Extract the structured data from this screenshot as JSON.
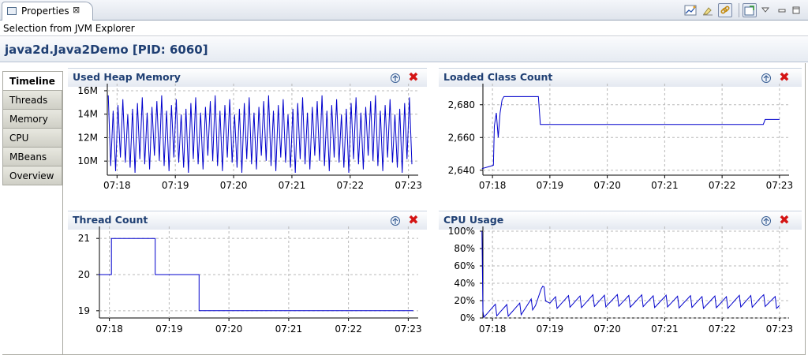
{
  "view": {
    "tab_label": "Properties",
    "tab_close": "⊠"
  },
  "toolbar": [
    "chart-icon",
    "clear-icon",
    "link-icon",
    "pin-icon",
    "view-menu-icon",
    "minimize-icon",
    "maximize-icon"
  ],
  "selection_text": "Selection from JVM Explorer",
  "page_title": "java2d.Java2Demo [PID: 6060]",
  "left_tabs": [
    "Timeline",
    "Threads",
    "Memory",
    "CPU",
    "MBeans",
    "Overview"
  ],
  "active_tab": "Timeline",
  "x_ticks": [
    "07:18",
    "07:19",
    "07:20",
    "07:21",
    "07:22",
    "07:23"
  ],
  "colors": {
    "series": "#0000cc",
    "title": "#1f3f73",
    "close": "#d41414"
  },
  "charts": {
    "heap": {
      "title": "Used Heap Memory"
    },
    "classes": {
      "title": "Loaded Class Count"
    },
    "threads": {
      "title": "Thread Count"
    },
    "cpu": {
      "title": "CPU Usage"
    }
  },
  "chart_data": [
    {
      "type": "line",
      "title": "Used Heap Memory",
      "xlabel": "",
      "ylabel": "",
      "x_ticks": [
        "07:18",
        "07:19",
        "07:20",
        "07:21",
        "07:22",
        "07:23"
      ],
      "y_ticks": [
        "10M",
        "12M",
        "14M",
        "16M"
      ],
      "xlim": [
        "07:17:50",
        "07:23:10"
      ],
      "ylim": [
        8.8,
        16.2
      ],
      "units": "MB",
      "oscillation": {
        "min": 9.0,
        "max": 15.6,
        "period_seconds": 5
      }
    },
    {
      "type": "line",
      "title": "Loaded Class Count",
      "xlabel": "",
      "ylabel": "",
      "x_ticks": [
        "07:18",
        "07:19",
        "07:20",
        "07:21",
        "07:22",
        "07:23"
      ],
      "y_ticks": [
        "2,640",
        "2,660",
        "2,680"
      ],
      "xlim": [
        "07:17:50",
        "07:23:10"
      ],
      "ylim": [
        2637,
        2690
      ],
      "points": [
        [
          "07:17:49",
          2641
        ],
        [
          "07:17:55",
          2642
        ],
        [
          "07:18:01",
          2643
        ],
        [
          "07:18:02",
          2667
        ],
        [
          "07:18:04",
          2675
        ],
        [
          "07:18:06",
          2660
        ],
        [
          "07:18:08",
          2675
        ],
        [
          "07:18:10",
          2683
        ],
        [
          "07:18:12",
          2685
        ],
        [
          "07:18:48",
          2685
        ],
        [
          "07:18:50",
          2668
        ],
        [
          "07:22:43",
          2668
        ],
        [
          "07:22:45",
          2671
        ],
        [
          "07:23:00",
          2671
        ]
      ]
    },
    {
      "type": "line",
      "title": "Thread Count",
      "xlabel": "",
      "ylabel": "",
      "x_ticks": [
        "07:18",
        "07:19",
        "07:20",
        "07:21",
        "07:22",
        "07:23"
      ],
      "y_ticks": [
        "19",
        "20",
        "21"
      ],
      "xlim": [
        "07:17:50",
        "07:23:10"
      ],
      "ylim": [
        18.8,
        21.2
      ],
      "points": [
        [
          "07:17:49",
          20
        ],
        [
          "07:18:02",
          20
        ],
        [
          "07:18:02",
          21
        ],
        [
          "07:18:46",
          21
        ],
        [
          "07:18:46",
          20
        ],
        [
          "07:19:30",
          20
        ],
        [
          "07:19:30",
          19
        ],
        [
          "07:23:05",
          19
        ]
      ]
    },
    {
      "type": "line",
      "title": "CPU Usage",
      "xlabel": "",
      "ylabel": "",
      "x_ticks": [
        "07:18",
        "07:19",
        "07:20",
        "07:21",
        "07:22",
        "07:23"
      ],
      "y_ticks": [
        "0%",
        "20%",
        "40%",
        "60%",
        "80%",
        "100%"
      ],
      "xlim": [
        "07:17:50",
        "07:23:10"
      ],
      "ylim": [
        0,
        100
      ],
      "points": [
        [
          "07:17:49",
          100
        ],
        [
          "07:17:50",
          8
        ],
        [
          "07:18:30",
          10
        ],
        [
          "07:18:45",
          18
        ],
        [
          "07:18:52",
          32
        ],
        [
          "07:19:00",
          18
        ],
        [
          "07:20:00",
          20
        ],
        [
          "07:21:00",
          19
        ],
        [
          "07:22:00",
          18
        ],
        [
          "07:22:40",
          20
        ],
        [
          "07:23:00",
          18
        ]
      ]
    }
  ]
}
